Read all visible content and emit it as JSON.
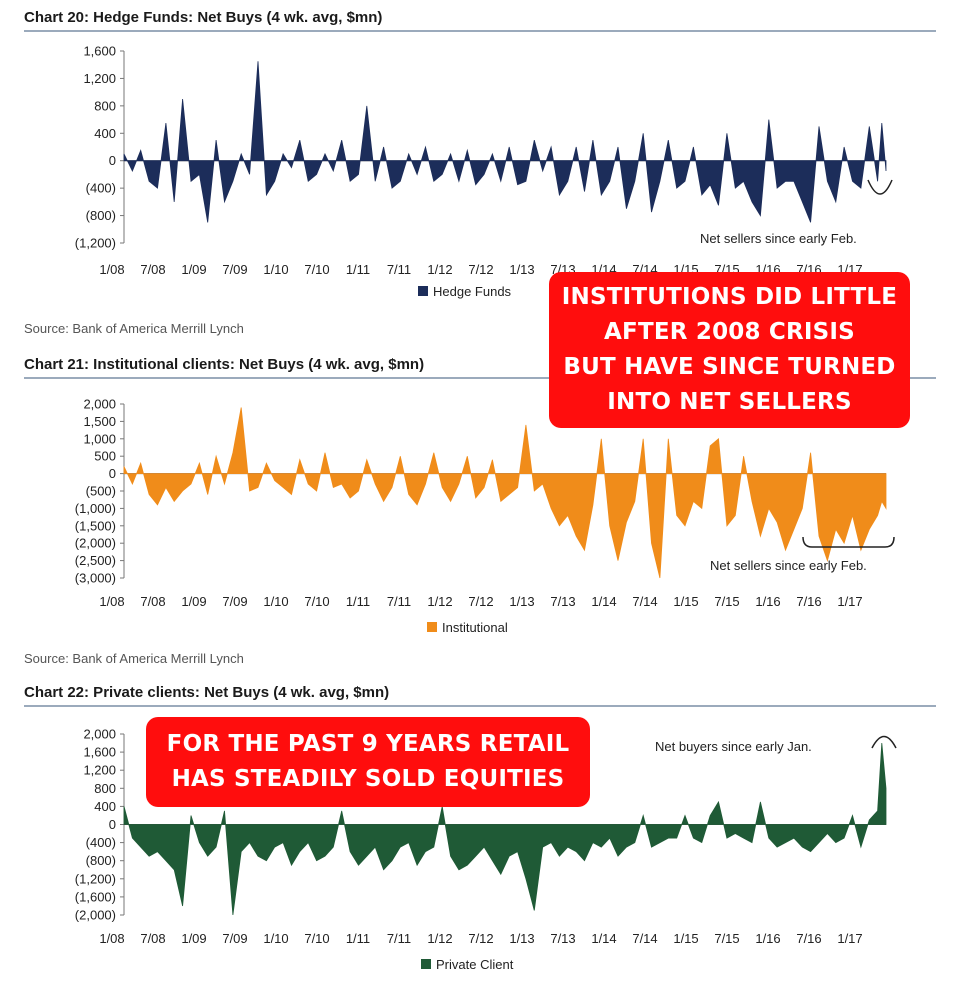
{
  "charts_meta": {
    "colors": {
      "hedge": "#1c2d5a",
      "institutional": "#f08c1a",
      "private": "#1f5a36",
      "rule": "#7a8da6"
    }
  },
  "callouts": {
    "institutions": [
      "INSTITUTIONS DID LITTLE",
      "AFTER 2008 CRISIS",
      "BUT HAVE SINCE TURNED",
      "INTO NET SELLERS"
    ],
    "retail": [
      "FOR THE PAST 9 YEARS RETAIL",
      "HAS STEADILY SOLD EQUITIES"
    ]
  },
  "chart_data": [
    {
      "type": "area",
      "title": "Chart 20: Hedge Funds: Net Buys (4 wk. avg, $mn)",
      "source": "",
      "legend": "Hedge Funds",
      "annotation": "Net sellers since early Feb.",
      "ylim": [
        -1200,
        1600
      ],
      "yticks": [
        1600,
        1200,
        800,
        400,
        0,
        -400,
        -800,
        -1200
      ],
      "ytick_labels": [
        "1,600",
        "1,200",
        "800",
        "400",
        "0",
        "(400)",
        "(800)",
        "(1,200)"
      ],
      "xtick_labels": [
        "1/08",
        "7/08",
        "1/09",
        "7/09",
        "1/10",
        "7/10",
        "1/11",
        "7/11",
        "1/12",
        "7/12",
        "1/13",
        "7/13",
        "1/14",
        "7/14",
        "1/15",
        "7/15",
        "1/16",
        "7/16",
        "1/17"
      ],
      "x": [
        2008.0,
        2008.1,
        2008.2,
        2008.3,
        2008.4,
        2008.5,
        2008.6,
        2008.7,
        2008.8,
        2008.9,
        2009.0,
        2009.1,
        2009.2,
        2009.3,
        2009.4,
        2009.5,
        2009.6,
        2009.7,
        2009.8,
        2009.9,
        2010.0,
        2010.1,
        2010.2,
        2010.3,
        2010.4,
        2010.5,
        2010.6,
        2010.7,
        2010.8,
        2010.9,
        2011.0,
        2011.1,
        2011.2,
        2011.3,
        2011.4,
        2011.5,
        2011.6,
        2011.7,
        2011.8,
        2011.9,
        2012.0,
        2012.1,
        2012.2,
        2012.3,
        2012.4,
        2012.5,
        2012.6,
        2012.7,
        2012.8,
        2012.9,
        2013.0,
        2013.1,
        2013.2,
        2013.3,
        2013.4,
        2013.5,
        2013.6,
        2013.7,
        2013.8,
        2013.9,
        2014.0,
        2014.1,
        2014.2,
        2014.3,
        2014.4,
        2014.5,
        2014.6,
        2014.7,
        2014.8,
        2014.9,
        2015.0,
        2015.1,
        2015.2,
        2015.3,
        2015.4,
        2015.5,
        2015.6,
        2015.7,
        2015.8,
        2015.9,
        2016.0,
        2016.1,
        2016.2,
        2016.3,
        2016.4,
        2016.5,
        2016.6,
        2016.7,
        2016.8,
        2016.9,
        2017.0,
        2017.05,
        2017.1
      ],
      "values": [
        100,
        -150,
        150,
        -300,
        -400,
        550,
        -600,
        900,
        -300,
        -200,
        -900,
        300,
        -600,
        -300,
        100,
        -200,
        1450,
        -500,
        -300,
        100,
        -100,
        300,
        -300,
        -200,
        100,
        -150,
        300,
        -300,
        -200,
        800,
        -300,
        200,
        -400,
        -300,
        100,
        -200,
        200,
        -300,
        -200,
        100,
        -300,
        150,
        -350,
        -200,
        100,
        -300,
        200,
        -350,
        -300,
        300,
        -150,
        200,
        -500,
        -300,
        200,
        -450,
        300,
        -500,
        -300,
        200,
        -700,
        -300,
        400,
        -750,
        -300,
        300,
        -400,
        -300,
        200,
        -500,
        -350,
        -650,
        400,
        -400,
        -300,
        -600,
        -800,
        600,
        -400,
        -300,
        -300,
        -600,
        -900,
        500,
        -300,
        -600,
        200,
        -300,
        -400,
        500,
        -300,
        550,
        -150
      ]
    },
    {
      "type": "area",
      "title": "Chart 21: Institutional clients: Net Buys (4 wk. avg, $mn)",
      "source": "Source: Bank of America Merrill Lynch",
      "legend": "Institutional",
      "annotation": "Net sellers since early Feb.",
      "ylim": [
        -3000,
        2000
      ],
      "yticks": [
        2000,
        1500,
        1000,
        500,
        0,
        -500,
        -1000,
        -1500,
        -2000,
        -2500,
        -3000
      ],
      "ytick_labels": [
        "2,000",
        "1,500",
        "1,000",
        "500",
        "0",
        "(500)",
        "(1,000)",
        "(1,500)",
        "(2,000)",
        "(2,500)",
        "(3,000)"
      ],
      "xtick_labels": [
        "1/08",
        "7/08",
        "1/09",
        "7/09",
        "1/10",
        "7/10",
        "1/11",
        "7/11",
        "1/12",
        "7/12",
        "1/13",
        "7/13",
        "1/14",
        "7/14",
        "1/15",
        "7/15",
        "1/16",
        "7/16",
        "1/17"
      ],
      "x": [
        2008.0,
        2008.1,
        2008.2,
        2008.3,
        2008.4,
        2008.5,
        2008.6,
        2008.7,
        2008.8,
        2008.9,
        2009.0,
        2009.1,
        2009.2,
        2009.3,
        2009.4,
        2009.5,
        2009.6,
        2009.7,
        2009.8,
        2009.9,
        2010.0,
        2010.1,
        2010.2,
        2010.3,
        2010.4,
        2010.5,
        2010.6,
        2010.7,
        2010.8,
        2010.9,
        2011.0,
        2011.1,
        2011.2,
        2011.3,
        2011.4,
        2011.5,
        2011.6,
        2011.7,
        2011.8,
        2011.9,
        2012.0,
        2012.1,
        2012.2,
        2012.3,
        2012.4,
        2012.5,
        2012.6,
        2012.7,
        2012.8,
        2012.9,
        2013.0,
        2013.1,
        2013.2,
        2013.3,
        2013.4,
        2013.5,
        2013.6,
        2013.7,
        2013.8,
        2013.9,
        2014.0,
        2014.1,
        2014.2,
        2014.3,
        2014.4,
        2014.5,
        2014.6,
        2014.7,
        2014.8,
        2014.9,
        2015.0,
        2015.1,
        2015.2,
        2015.3,
        2015.4,
        2015.5,
        2015.6,
        2015.7,
        2015.8,
        2015.9,
        2016.0,
        2016.1,
        2016.2,
        2016.3,
        2016.4,
        2016.5,
        2016.6,
        2016.7,
        2016.8,
        2016.9,
        2017.0,
        2017.05,
        2017.1
      ],
      "values": [
        200,
        -300,
        300,
        -600,
        -900,
        -400,
        -800,
        -500,
        -300,
        300,
        -600,
        500,
        -300,
        600,
        1900,
        -500,
        -400,
        300,
        -200,
        -400,
        -600,
        400,
        -300,
        -500,
        600,
        -400,
        -300,
        -700,
        -500,
        400,
        -300,
        -800,
        -400,
        500,
        -600,
        -900,
        -300,
        600,
        -400,
        -800,
        -300,
        500,
        -700,
        -400,
        400,
        -800,
        -600,
        -400,
        1400,
        -500,
        -300,
        -1000,
        -1500,
        -1200,
        -1800,
        -2200,
        -900,
        1000,
        -1500,
        -2500,
        -1400,
        -800,
        1000,
        -2000,
        -3000,
        1000,
        -1200,
        -1500,
        -800,
        -1000,
        800,
        1000,
        -1500,
        -1200,
        500,
        -800,
        -1800,
        -1000,
        -1400,
        -2200,
        -1600,
        -1000,
        600,
        -1800,
        -2500,
        -1600,
        -2000,
        -1200,
        -2200,
        -1600,
        -1200,
        -800,
        -1000
      ]
    },
    {
      "type": "area",
      "title": "Chart 22: Private clients: Net Buys (4 wk. avg, $mn)",
      "source": "Source: Bank of America Merrill Lynch",
      "legend": "Private Client",
      "annotation": "Net buyers since early Jan.",
      "ylim": [
        -2000,
        2000
      ],
      "yticks": [
        2000,
        1600,
        1200,
        800,
        400,
        0,
        -400,
        -800,
        -1200,
        -1600,
        -2000
      ],
      "ytick_labels": [
        "2,000",
        "1,600",
        "1,200",
        "800",
        "400",
        "0",
        "(400)",
        "(800)",
        "(1,200)",
        "(1,600)",
        "(2,000)"
      ],
      "xtick_labels": [
        "1/08",
        "7/08",
        "1/09",
        "7/09",
        "1/10",
        "7/10",
        "1/11",
        "7/11",
        "1/12",
        "7/12",
        "1/13",
        "7/13",
        "1/14",
        "7/14",
        "1/15",
        "7/15",
        "1/16",
        "7/16",
        "1/17"
      ],
      "x": [
        2008.0,
        2008.1,
        2008.2,
        2008.3,
        2008.4,
        2008.5,
        2008.6,
        2008.7,
        2008.8,
        2008.9,
        2009.0,
        2009.1,
        2009.2,
        2009.3,
        2009.4,
        2009.5,
        2009.6,
        2009.7,
        2009.8,
        2009.9,
        2010.0,
        2010.1,
        2010.2,
        2010.3,
        2010.4,
        2010.5,
        2010.6,
        2010.7,
        2010.8,
        2010.9,
        2011.0,
        2011.1,
        2011.2,
        2011.3,
        2011.4,
        2011.5,
        2011.6,
        2011.7,
        2011.8,
        2011.9,
        2012.0,
        2012.1,
        2012.2,
        2012.3,
        2012.4,
        2012.5,
        2012.6,
        2012.7,
        2012.8,
        2012.9,
        2013.0,
        2013.1,
        2013.2,
        2013.3,
        2013.4,
        2013.5,
        2013.6,
        2013.7,
        2013.8,
        2013.9,
        2014.0,
        2014.1,
        2014.2,
        2014.3,
        2014.4,
        2014.5,
        2014.6,
        2014.7,
        2014.8,
        2014.9,
        2015.0,
        2015.1,
        2015.2,
        2015.3,
        2015.4,
        2015.5,
        2015.6,
        2015.7,
        2015.8,
        2015.9,
        2016.0,
        2016.1,
        2016.2,
        2016.3,
        2016.4,
        2016.5,
        2016.6,
        2016.7,
        2016.8,
        2016.9,
        2017.0,
        2017.05,
        2017.1
      ],
      "values": [
        400,
        -300,
        -500,
        -700,
        -600,
        -800,
        -1000,
        -1800,
        200,
        -400,
        -700,
        -500,
        300,
        -2000,
        -600,
        -400,
        -700,
        -800,
        -500,
        -400,
        -900,
        -600,
        -400,
        -800,
        -700,
        -500,
        300,
        -600,
        -900,
        -700,
        -500,
        -1000,
        -800,
        -500,
        -400,
        -900,
        -600,
        -500,
        400,
        -700,
        -1000,
        -900,
        -700,
        -500,
        -800,
        -1100,
        -700,
        -600,
        -1200,
        -1900,
        -500,
        -400,
        -700,
        -500,
        -600,
        -800,
        -400,
        -500,
        -300,
        -700,
        -500,
        -400,
        200,
        -500,
        -400,
        -300,
        -300,
        200,
        -300,
        -400,
        200,
        500,
        -300,
        -200,
        -300,
        -400,
        500,
        -300,
        -500,
        -400,
        -300,
        -500,
        -600,
        -400,
        -200,
        -400,
        -300,
        200,
        -500,
        100,
        300,
        1800,
        800
      ]
    }
  ]
}
